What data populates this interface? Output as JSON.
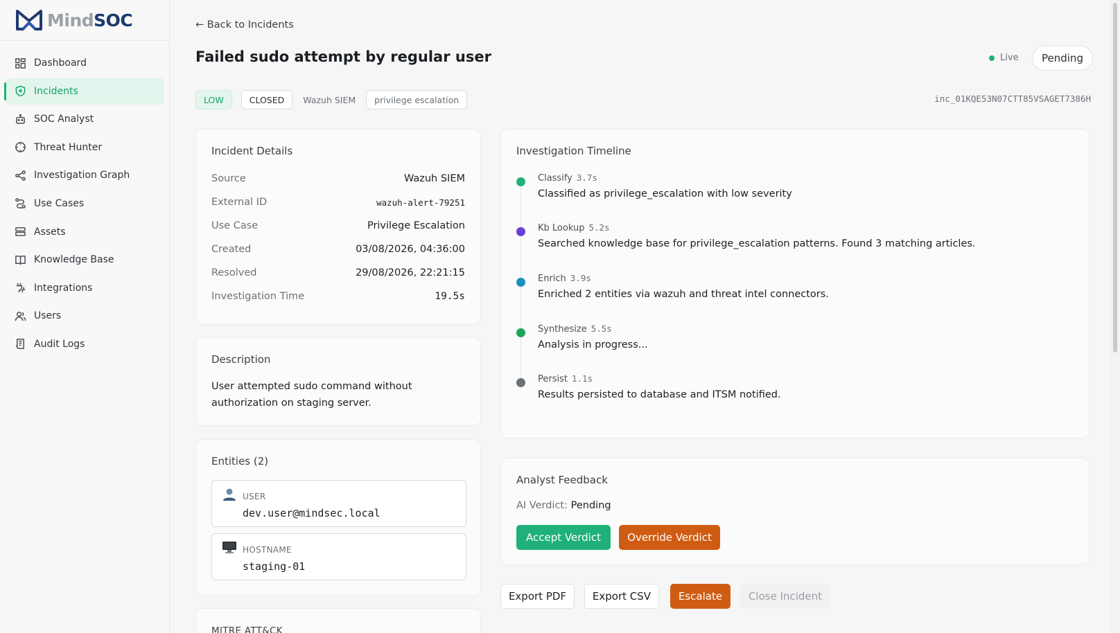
{
  "app": {
    "logo_mind": "Mind",
    "logo_soc": "SOC"
  },
  "sidebar": {
    "items": [
      {
        "label": "Dashboard",
        "icon": "grid-icon"
      },
      {
        "label": "Incidents",
        "icon": "shield-icon",
        "active": true
      },
      {
        "label": "SOC Analyst",
        "icon": "bot-icon"
      },
      {
        "label": "Threat Hunter",
        "icon": "crosshair-icon"
      },
      {
        "label": "Investigation Graph",
        "icon": "share-graph-icon"
      },
      {
        "label": "Use Cases",
        "icon": "route-icon"
      },
      {
        "label": "Assets",
        "icon": "server-icon"
      },
      {
        "label": "Knowledge Base",
        "icon": "book-icon"
      },
      {
        "label": "Integrations",
        "icon": "plug-icon"
      },
      {
        "label": "Users",
        "icon": "users-icon"
      },
      {
        "label": "Audit Logs",
        "icon": "log-icon"
      }
    ]
  },
  "header": {
    "back_label": "← Back to Incidents",
    "title": "Failed sudo attempt by regular user",
    "live_label": "Live",
    "status_pill": "Pending"
  },
  "tags": {
    "severity": "LOW",
    "state": "CLOSED",
    "source": "Wazuh SIEM",
    "category": "privilege escalation",
    "incident_id": "inc_01KQE53N07CTT85VSAGET7386H"
  },
  "details": {
    "title": "Incident Details",
    "rows": [
      {
        "key": "Source",
        "value": "Wazuh SIEM"
      },
      {
        "key": "External ID",
        "value": "wazuh-alert-79251"
      },
      {
        "key": "Use Case",
        "value": "Privilege Escalation"
      },
      {
        "key": "Created",
        "value": "03/08/2026, 04:36:00"
      },
      {
        "key": "Resolved",
        "value": "29/08/2026, 22:21:15"
      },
      {
        "key": "Investigation Time",
        "value": "19.5s"
      }
    ]
  },
  "description": {
    "title": "Description",
    "text": "User attempted sudo command without authorization on staging server."
  },
  "entities": {
    "title": "Entities (2)",
    "items": [
      {
        "type": "USER",
        "value": "dev.user@mindsec.local",
        "icon": "user-icon"
      },
      {
        "type": "HOSTNAME",
        "value": "staging-01",
        "icon": "monitor-icon"
      }
    ]
  },
  "mitre": {
    "title": "MITRE ATT&CK"
  },
  "timeline": {
    "title": "Investigation Timeline",
    "steps": [
      {
        "step": "Classify",
        "duration": "3.7s",
        "message": "Classified as privilege_escalation with low severity",
        "color": "#1fb179"
      },
      {
        "step": "Kb Lookup",
        "duration": "5.2s",
        "message": "Searched knowledge base for privilege_escalation patterns. Found 3 matching articles.",
        "color": "#6a3fd8"
      },
      {
        "step": "Enrich",
        "duration": "3.9s",
        "message": "Enriched 2 entities via wazuh and threat intel connectors.",
        "color": "#1b8fbf"
      },
      {
        "step": "Synthesize",
        "duration": "5.5s",
        "message": "Analysis in progress...",
        "color": "#1fa55a"
      },
      {
        "step": "Persist",
        "duration": "1.1s",
        "message": "Results persisted to database and ITSM notified.",
        "color": "#6b7178"
      }
    ]
  },
  "feedback": {
    "title": "Analyst Feedback",
    "verdict_label": "AI Verdict:",
    "verdict_value": "Pending",
    "accept_label": "Accept Verdict",
    "override_label": "Override Verdict"
  },
  "actions": {
    "export_pdf": "Export PDF",
    "export_csv": "Export CSV",
    "escalate": "Escalate",
    "close": "Close Incident"
  },
  "colors": {
    "accent_green": "#1fb179",
    "accent_orange": "#cf5c12",
    "brand_navy": "#1e3a6e"
  }
}
